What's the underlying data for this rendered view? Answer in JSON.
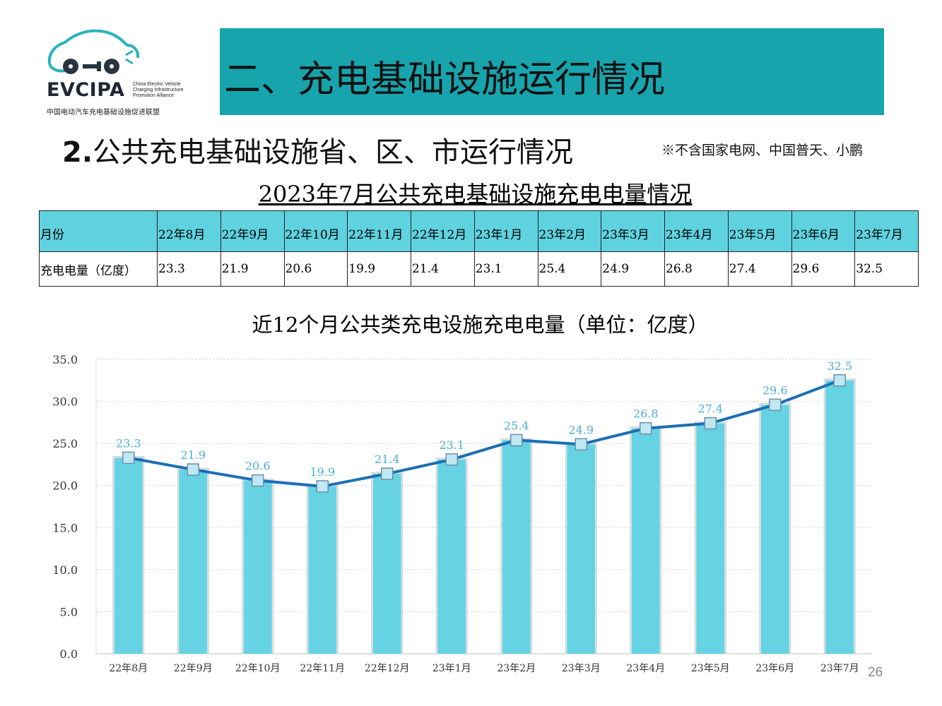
{
  "logo": {
    "name": "EVCIPA",
    "en_lines": [
      "China Electric Vehicle",
      "Charging Infrastructure",
      "Promotion Alliance"
    ],
    "cn": "中国电动汽车充电基础设施促进联盟"
  },
  "header": {
    "title": "二、充电基础设施运行情况",
    "subtitle_num": "2.",
    "subtitle_text": "公共充电基础设施省、区、市运行情况",
    "note": "※不含国家电网、中国普天、小鹏"
  },
  "table": {
    "title": "2023年7月公共充电基础设施充电电量情况",
    "row_header": "月份",
    "row_label": "充电电量（亿度）",
    "months": [
      "22年8月",
      "22年9月",
      "22年10月",
      "22年11月",
      "22年12月",
      "23年1月",
      "23年2月",
      "23年3月",
      "23年4月",
      "23年5月",
      "23年6月",
      "23年7月"
    ],
    "values": [
      "23.3",
      "21.9",
      "20.6",
      "19.9",
      "21.4",
      "23.1",
      "25.4",
      "24.9",
      "26.8",
      "27.4",
      "29.6",
      "32.5"
    ]
  },
  "chart_data": {
    "type": "bar",
    "title": "近12个月公共类充电设施充电电量（单位：亿度）",
    "xlabel": "",
    "ylabel": "",
    "categories": [
      "22年8月",
      "22年9月",
      "22年10月",
      "22年11月",
      "22年12月",
      "23年1月",
      "23年2月",
      "23年3月",
      "23年4月",
      "23年5月",
      "23年6月",
      "23年7月"
    ],
    "series": [
      {
        "values": [
          23.3,
          21.9,
          20.6,
          19.9,
          21.4,
          23.1,
          25.4,
          24.9,
          26.8,
          27.4,
          29.6,
          32.5
        ]
      }
    ],
    "overlay": "line with square markers through bar tops",
    "ylim": [
      0,
      35
    ],
    "yticks": [
      "0.0",
      "5.0",
      "10.0",
      "15.0",
      "20.0",
      "25.0",
      "30.0",
      "35.0"
    ],
    "data_labels": [
      "23.3",
      "21.9",
      "20.6",
      "19.9",
      "21.4",
      "23.1",
      "25.4",
      "24.9",
      "26.8",
      "27.4",
      "29.6",
      "32.5"
    ],
    "grid": true,
    "legend": "none",
    "colors": {
      "bar": "#66d3e4",
      "line": "#1a6fb5",
      "label": "#4aaed0"
    }
  },
  "page_number": "26"
}
